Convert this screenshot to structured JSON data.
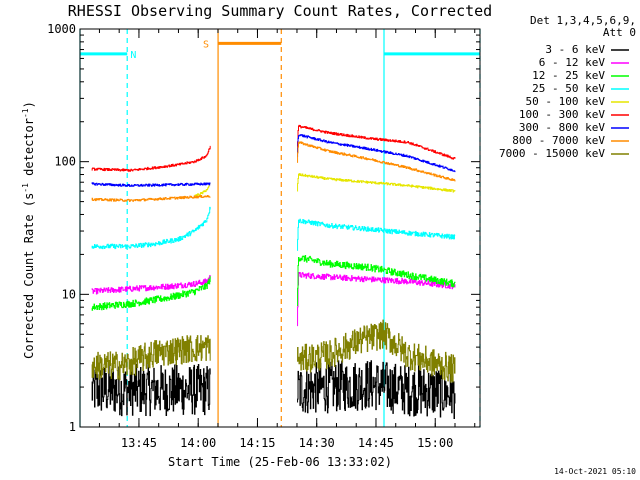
{
  "chart_data": {
    "type": "line",
    "title": "RHESSI Observing Summary Count Rates, Corrected",
    "xlabel": "Start Time (25-Feb-06 13:33:02)",
    "ylabel_parts": {
      "main": "Corrected Count Rate (s",
      "unit1": "",
      "exp1": "-1",
      "unit2": " detector",
      "exp2": "-1",
      "close": ")"
    },
    "x_unit": "minutes after 13:33:02",
    "xlim": [
      -2.95,
      98.3
    ],
    "y_scale": "log",
    "ylim": [
      1,
      1000
    ],
    "x_ticks": [
      {
        "value": 11.97,
        "label": "13:45"
      },
      {
        "value": 26.97,
        "label": "14:00"
      },
      {
        "value": 41.97,
        "label": "14:15"
      },
      {
        "value": 56.97,
        "label": "14:30"
      },
      {
        "value": 71.97,
        "label": "14:45"
      },
      {
        "value": 86.97,
        "label": "15:00"
      }
    ],
    "y_ticks": [
      {
        "value": 1,
        "label": "1"
      },
      {
        "value": 10,
        "label": "10"
      },
      {
        "value": 100,
        "label": "100"
      },
      {
        "value": 1000,
        "label": "1000"
      }
    ],
    "grid": false,
    "legend": {
      "position": "right",
      "detectors": "Det 1,3,4,5,6,9,",
      "attenuator": "Att 0"
    },
    "series": [
      {
        "name": "3 - 6 keV",
        "color": "#000000",
        "segments": [
          {
            "x": [
              0.0,
              8.0,
              16.0,
              25.0,
              30.0
            ],
            "y": [
              1.9,
              1.9,
              1.9,
              1.9,
              1.9
            ],
            "noise": 0.45,
            "floor": 1.0
          },
          {
            "x": [
              52.0,
              60.0,
              70.0,
              80.0,
              92.0
            ],
            "y": [
              1.9,
              2.0,
              2.1,
              1.9,
              1.8
            ],
            "noise": 0.45,
            "floor": 1.0
          }
        ]
      },
      {
        "name": "6 - 12 keV",
        "color": "#ff00ff",
        "segments": [
          {
            "x": [
              0.0,
              10.0,
              20.0,
              26.0,
              29.0,
              30.0
            ],
            "y": [
              10.5,
              11.0,
              11.5,
              12.0,
              12.5,
              13.5
            ],
            "noise": 0.05
          },
          {
            "x": [
              52.0,
              52.3,
              60.0,
              70.0,
              80.0,
              92.0
            ],
            "y": [
              6.0,
              14.0,
              13.5,
              13.0,
              12.5,
              11.5
            ],
            "noise": 0.05
          }
        ]
      },
      {
        "name": "12 - 25 keV",
        "color": "#00ff00",
        "segments": [
          {
            "x": [
              0.0,
              10.0,
              20.0,
              26.0,
              29.0,
              30.0
            ],
            "y": [
              8.0,
              8.5,
              9.5,
              10.5,
              11.5,
              13.0
            ],
            "noise": 0.06
          },
          {
            "x": [
              52.0,
              52.3,
              60.0,
              70.0,
              80.0,
              92.0
            ],
            "y": [
              8.0,
              19.0,
              17.0,
              16.0,
              14.0,
              12.0
            ],
            "noise": 0.06
          }
        ]
      },
      {
        "name": "25 - 50 keV",
        "color": "#00ffff",
        "segments": [
          {
            "x": [
              0.0,
              10.0,
              16.0,
              22.0,
              26.0,
              29.0,
              30.0
            ],
            "y": [
              23.0,
              23.0,
              24.0,
              26.0,
              30.0,
              36.0,
              45.0
            ],
            "noise": 0.04
          },
          {
            "x": [
              52.0,
              52.3,
              60.0,
              70.0,
              80.0,
              92.0
            ],
            "y": [
              22.0,
              36.0,
              33.0,
              31.0,
              29.0,
              27.0
            ],
            "noise": 0.04
          }
        ]
      },
      {
        "name": "50 - 100 keV",
        "color": "#e6e600",
        "segments": [
          {
            "x": [
              26.0,
              28.0,
              29.5,
              30.0
            ],
            "y": [
              55.0,
              58.0,
              63.0,
              70.0
            ],
            "noise": 0.02
          },
          {
            "x": [
              52.0,
              52.3,
              60.0,
              70.0,
              80.0,
              92.0
            ],
            "y": [
              60.0,
              80.0,
              74.0,
              70.0,
              66.0,
              60.0
            ],
            "noise": 0.02
          }
        ]
      },
      {
        "name": "100 - 300 keV",
        "color": "#ff0000",
        "segments": [
          {
            "x": [
              0.0,
              10.0,
              16.0,
              22.0,
              26.0,
              29.0,
              30.0
            ],
            "y": [
              88.0,
              86.0,
              90.0,
              95.0,
              100.0,
              110.0,
              130.0
            ],
            "noise": 0.02
          },
          {
            "x": [
              52.0,
              52.3,
              60.0,
              70.0,
              80.0,
              92.0
            ],
            "y": [
              120.0,
              185.0,
              165.0,
              150.0,
              140.0,
              105.0
            ],
            "noise": 0.02
          }
        ]
      },
      {
        "name": "300 - 800 keV",
        "color": "#0000ff",
        "segments": [
          {
            "x": [
              0.0,
              10.0,
              20.0,
              30.0
            ],
            "y": [
              68.0,
              66.0,
              67.0,
              68.0
            ],
            "noise": 0.02
          },
          {
            "x": [
              52.0,
              52.3,
              60.0,
              70.0,
              80.0,
              92.0
            ],
            "y": [
              110.0,
              160.0,
              140.0,
              125.0,
              110.0,
              85.0
            ],
            "noise": 0.02
          }
        ]
      },
      {
        "name": "800 - 7000 keV",
        "color": "#ff8c00",
        "segments": [
          {
            "x": [
              0.0,
              10.0,
              20.0,
              30.0
            ],
            "y": [
              52.0,
              51.0,
              53.0,
              55.0
            ],
            "noise": 0.02
          },
          {
            "x": [
              52.0,
              52.3,
              60.0,
              70.0,
              80.0,
              92.0
            ],
            "y": [
              100.0,
              140.0,
              120.0,
              105.0,
              90.0,
              72.0
            ],
            "noise": 0.02
          }
        ]
      },
      {
        "name": "7000 - 15000 keV",
        "color": "#808000",
        "segments": [
          {
            "x": [
              0.0,
              8.0,
              16.0,
              25.0,
              30.0
            ],
            "y": [
              2.9,
              2.9,
              3.6,
              3.9,
              4.0
            ],
            "noise": 0.25
          },
          {
            "x": [
              52.0,
              60.0,
              68.0,
              74.0,
              80.0,
              92.0
            ],
            "y": [
              3.2,
              3.5,
              4.5,
              5.0,
              3.5,
              2.7
            ],
            "noise": 0.25
          }
        ]
      }
    ],
    "annotations": [
      {
        "label": "N",
        "kind": "night",
        "color": "#00ffff",
        "start": -2.95,
        "end": 9.0,
        "level": 650,
        "text_at": 9.8
      },
      {
        "label": "",
        "kind": "night",
        "color": "#00ffff",
        "start": 74.0,
        "end": 98.3,
        "level": 650
      },
      {
        "label": "S",
        "kind": "saa",
        "color": "#ff8c00",
        "start": 32.0,
        "end": 48.0,
        "level": 780,
        "text_at": 28.2
      }
    ],
    "markers": [
      {
        "x": -2.95,
        "color": "#00ffff",
        "style": "solid"
      },
      {
        "x": 9.0,
        "color": "#00ffff",
        "style": "dashed"
      },
      {
        "x": 32.0,
        "color": "#ff8c00",
        "style": "solid"
      },
      {
        "x": 48.0,
        "color": "#ff8c00",
        "style": "dashed"
      },
      {
        "x": 74.0,
        "color": "#00ffff",
        "style": "solid"
      },
      {
        "x": 98.3,
        "color": "#00ffff",
        "style": "dashed"
      }
    ]
  },
  "footer": {
    "timestamp": "14-Oct-2021 05:10"
  }
}
